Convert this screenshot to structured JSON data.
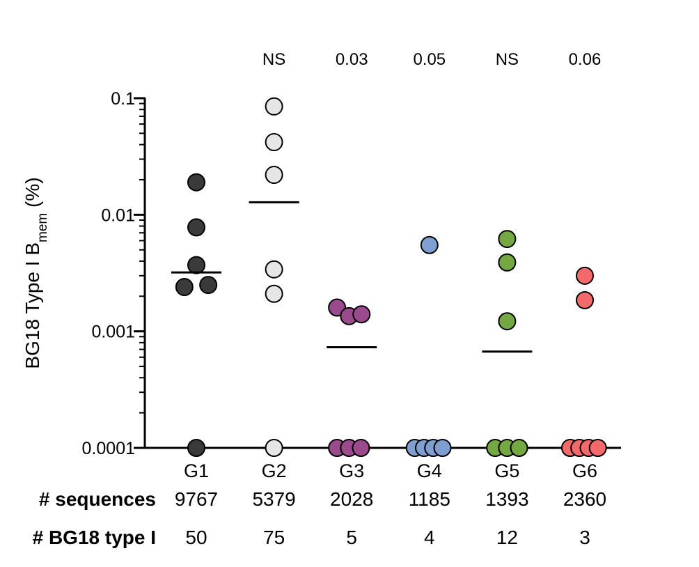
{
  "chart_data": {
    "type": "scatter",
    "ylabel": "BG18 Type I B",
    "ylabel_sub": "mem",
    "ylabel_suffix": " (%)",
    "yscale": "log",
    "ylim": [
      0.0001,
      0.1
    ],
    "yticks": [
      "0.0001",
      "0.001",
      "0.01",
      "0.1"
    ],
    "groups": [
      "G1",
      "G2",
      "G3",
      "G4",
      "G5",
      "G6"
    ],
    "colors": [
      "#3a3a3a",
      "#e6e6e6",
      "#9b4a8e",
      "#7f9fd0",
      "#74a843",
      "#f46a6a"
    ],
    "pvalues": [
      "",
      "NS",
      "0.03",
      "0.05",
      "NS",
      "0.06"
    ],
    "points": [
      [
        {
          "x": 0,
          "y": 0.019
        },
        {
          "x": 0,
          "y": 0.0078
        },
        {
          "x": 0,
          "y": 0.0037
        },
        {
          "x": -0.22,
          "y": 0.0024
        },
        {
          "x": 0.22,
          "y": 0.0025
        },
        {
          "x": 0,
          "y": 0.0001
        }
      ],
      [
        {
          "x": 0,
          "y": 0.085
        },
        {
          "x": 0,
          "y": 0.042
        },
        {
          "x": 0,
          "y": 0.022
        },
        {
          "x": 0,
          "y": 0.0034
        },
        {
          "x": 0,
          "y": 0.0021
        },
        {
          "x": 0,
          "y": 0.0001
        }
      ],
      [
        {
          "x": -0.27,
          "y": 0.0016
        },
        {
          "x": -0.05,
          "y": 0.00135
        },
        {
          "x": 0.18,
          "y": 0.0014
        },
        {
          "x": -0.27,
          "y": 0.0001
        },
        {
          "x": -0.05,
          "y": 0.0001
        },
        {
          "x": 0.17,
          "y": 0.0001
        }
      ],
      [
        {
          "x": 0,
          "y": 0.0055
        },
        {
          "x": -0.27,
          "y": 0.0001
        },
        {
          "x": -0.1,
          "y": 0.0001
        },
        {
          "x": 0.07,
          "y": 0.0001
        },
        {
          "x": 0.24,
          "y": 0.0001
        }
      ],
      [
        {
          "x": 0,
          "y": 0.0062
        },
        {
          "x": 0,
          "y": 0.0039
        },
        {
          "x": 0,
          "y": 0.00122
        },
        {
          "x": -0.22,
          "y": 0.0001
        },
        {
          "x": 0,
          "y": 0.0001
        },
        {
          "x": 0.22,
          "y": 0.0001
        }
      ],
      [
        {
          "x": 0,
          "y": 0.003
        },
        {
          "x": 0,
          "y": 0.00185
        },
        {
          "x": -0.27,
          "y": 0.0001
        },
        {
          "x": -0.1,
          "y": 0.0001
        },
        {
          "x": 0.07,
          "y": 0.0001
        },
        {
          "x": 0.24,
          "y": 0.0001
        }
      ]
    ],
    "medians": [
      0.0032,
      0.0128,
      0.00073,
      0.0001,
      0.00067,
      0.0001
    ],
    "rows": [
      {
        "label": "# sequences",
        "values": [
          "9767",
          "5379",
          "2028",
          "1185",
          "1393",
          "2360"
        ]
      },
      {
        "label": "# BG18 type I",
        "values": [
          "50",
          "75",
          "5",
          "4",
          "12",
          "3"
        ]
      }
    ]
  }
}
